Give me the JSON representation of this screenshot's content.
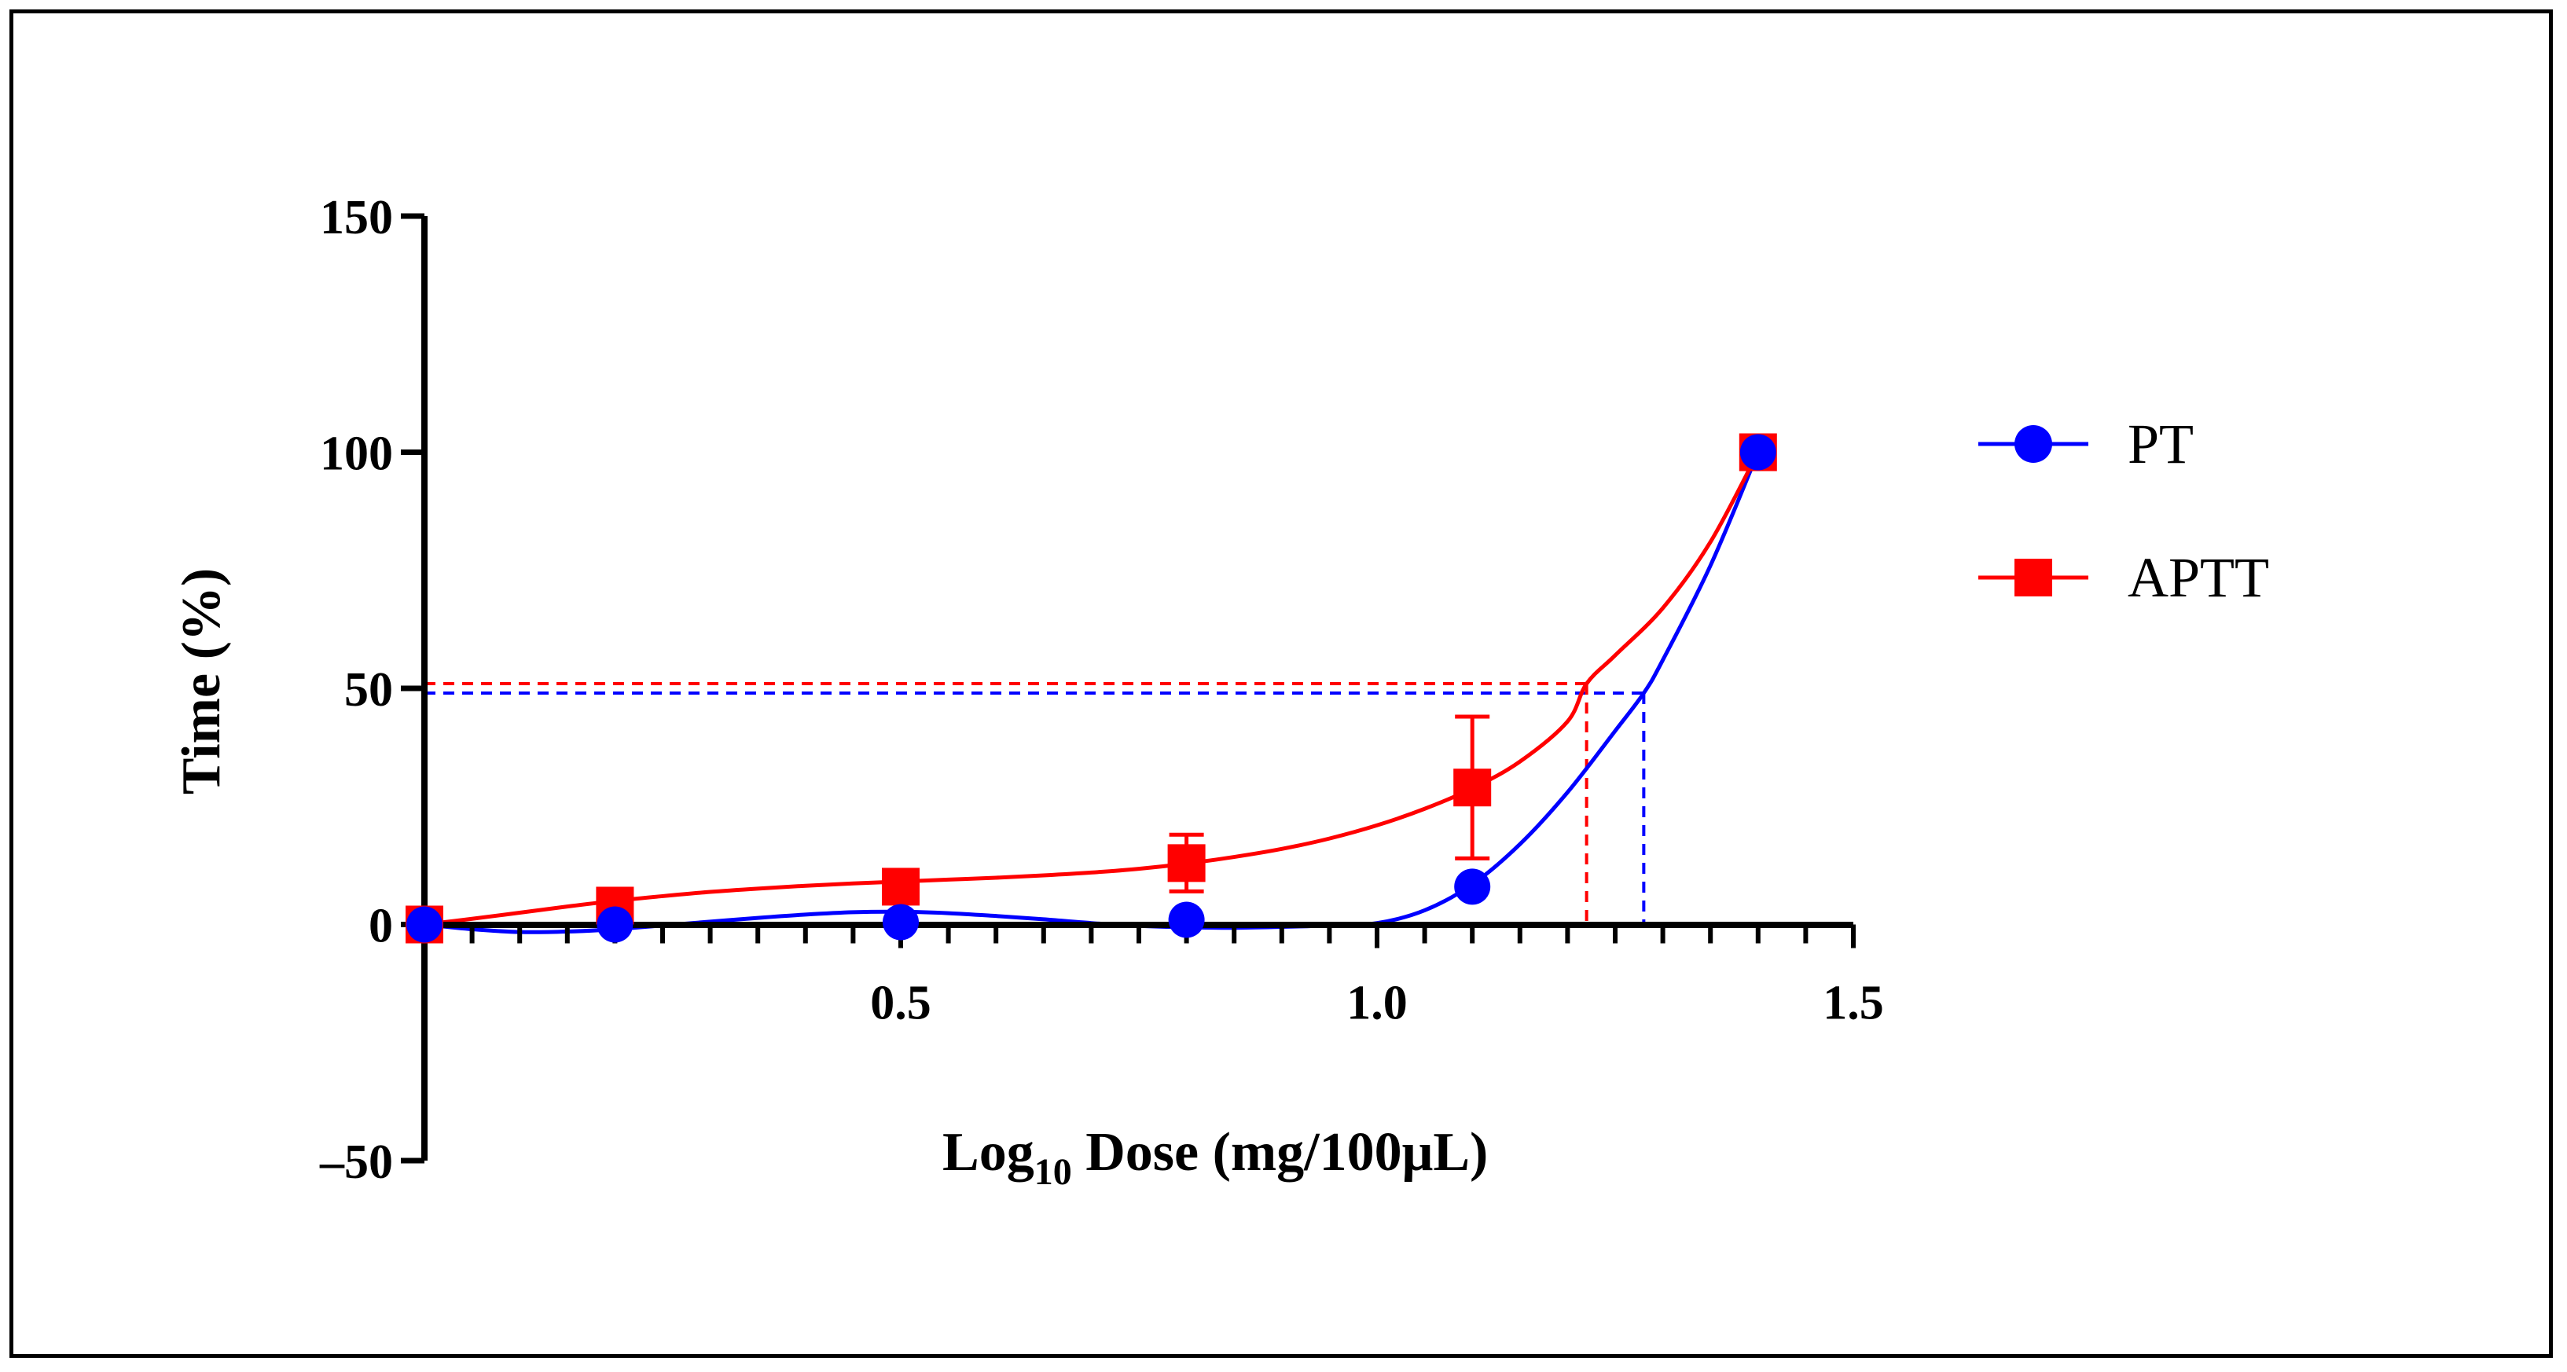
{
  "chart_data": {
    "type": "line",
    "xlabel_main": "Log",
    "xlabel_sub": "10",
    "xlabel_rest": " Dose (mg/100μL)",
    "ylabel": "Time (%)",
    "xlim": [
      0,
      1.5
    ],
    "ylim": [
      -50,
      150
    ],
    "x_ticks": [
      {
        "value": 0.5,
        "label": "0.5"
      },
      {
        "value": 1.0,
        "label": "1.0"
      },
      {
        "value": 1.5,
        "label": "1.5"
      }
    ],
    "y_ticks": [
      {
        "value": 150,
        "label": "150"
      },
      {
        "value": 100,
        "label": "100"
      },
      {
        "value": 50,
        "label": "50"
      },
      {
        "value": 0,
        "label": "0"
      },
      {
        "value": -50,
        "label": "–50"
      }
    ],
    "minor_x_tick_step": 0.05,
    "series": [
      {
        "name": "PT",
        "color": "#0000ff",
        "marker": "circle",
        "x": [
          0.0,
          0.2,
          0.5,
          0.8,
          1.1,
          1.4
        ],
        "y": [
          0,
          0,
          0.5,
          1,
          8,
          100
        ],
        "err": [
          0,
          0,
          0,
          0,
          0,
          0
        ],
        "curve": [
          [
            0,
            0
          ],
          [
            0.05,
            -1
          ],
          [
            0.1,
            -1.6
          ],
          [
            0.15,
            -1.5
          ],
          [
            0.2,
            -1
          ],
          [
            0.25,
            -0.2
          ],
          [
            0.3,
            0.6
          ],
          [
            0.35,
            1.4
          ],
          [
            0.4,
            2.1
          ],
          [
            0.45,
            2.6
          ],
          [
            0.5,
            2.7
          ],
          [
            0.55,
            2.4
          ],
          [
            0.6,
            1.8
          ],
          [
            0.65,
            1.1
          ],
          [
            0.7,
            0.3
          ],
          [
            0.75,
            -0.3
          ],
          [
            0.8,
            -0.6
          ],
          [
            0.85,
            -0.7
          ],
          [
            0.9,
            -0.5
          ],
          [
            0.95,
            -0.2
          ],
          [
            1.0,
            0.3
          ],
          [
            1.05,
            3
          ],
          [
            1.1,
            8.5
          ],
          [
            1.15,
            17
          ],
          [
            1.2,
            28
          ],
          [
            1.25,
            41
          ],
          [
            1.28,
            49
          ],
          [
            1.3,
            56
          ],
          [
            1.35,
            76
          ],
          [
            1.4,
            100
          ]
        ],
        "ic50_x": 1.28,
        "ic50_y": 49
      },
      {
        "name": "APTT",
        "color": "#ff0000",
        "marker": "square",
        "x": [
          0.0,
          0.2,
          0.5,
          0.8,
          1.1,
          1.4
        ],
        "y": [
          0,
          4,
          8,
          13,
          29,
          100
        ],
        "err": [
          0,
          1,
          1,
          6,
          15,
          0
        ],
        "curve": [
          [
            0,
            0
          ],
          [
            0.05,
            1.2
          ],
          [
            0.1,
            2.5
          ],
          [
            0.15,
            3.8
          ],
          [
            0.2,
            5
          ],
          [
            0.25,
            6
          ],
          [
            0.3,
            6.9
          ],
          [
            0.35,
            7.6
          ],
          [
            0.4,
            8.2
          ],
          [
            0.45,
            8.7
          ],
          [
            0.5,
            9.1
          ],
          [
            0.55,
            9.5
          ],
          [
            0.6,
            9.9
          ],
          [
            0.65,
            10.4
          ],
          [
            0.7,
            11
          ],
          [
            0.75,
            11.8
          ],
          [
            0.8,
            12.9
          ],
          [
            0.85,
            14.3
          ],
          [
            0.9,
            16
          ],
          [
            0.95,
            18.2
          ],
          [
            1.0,
            21
          ],
          [
            1.05,
            24.5
          ],
          [
            1.1,
            28.8
          ],
          [
            1.15,
            34.5
          ],
          [
            1.2,
            43
          ],
          [
            1.22,
            51
          ],
          [
            1.25,
            57
          ],
          [
            1.3,
            67
          ],
          [
            1.35,
            81
          ],
          [
            1.4,
            100
          ]
        ],
        "ic50_x": 1.22,
        "ic50_y": 51
      }
    ]
  }
}
